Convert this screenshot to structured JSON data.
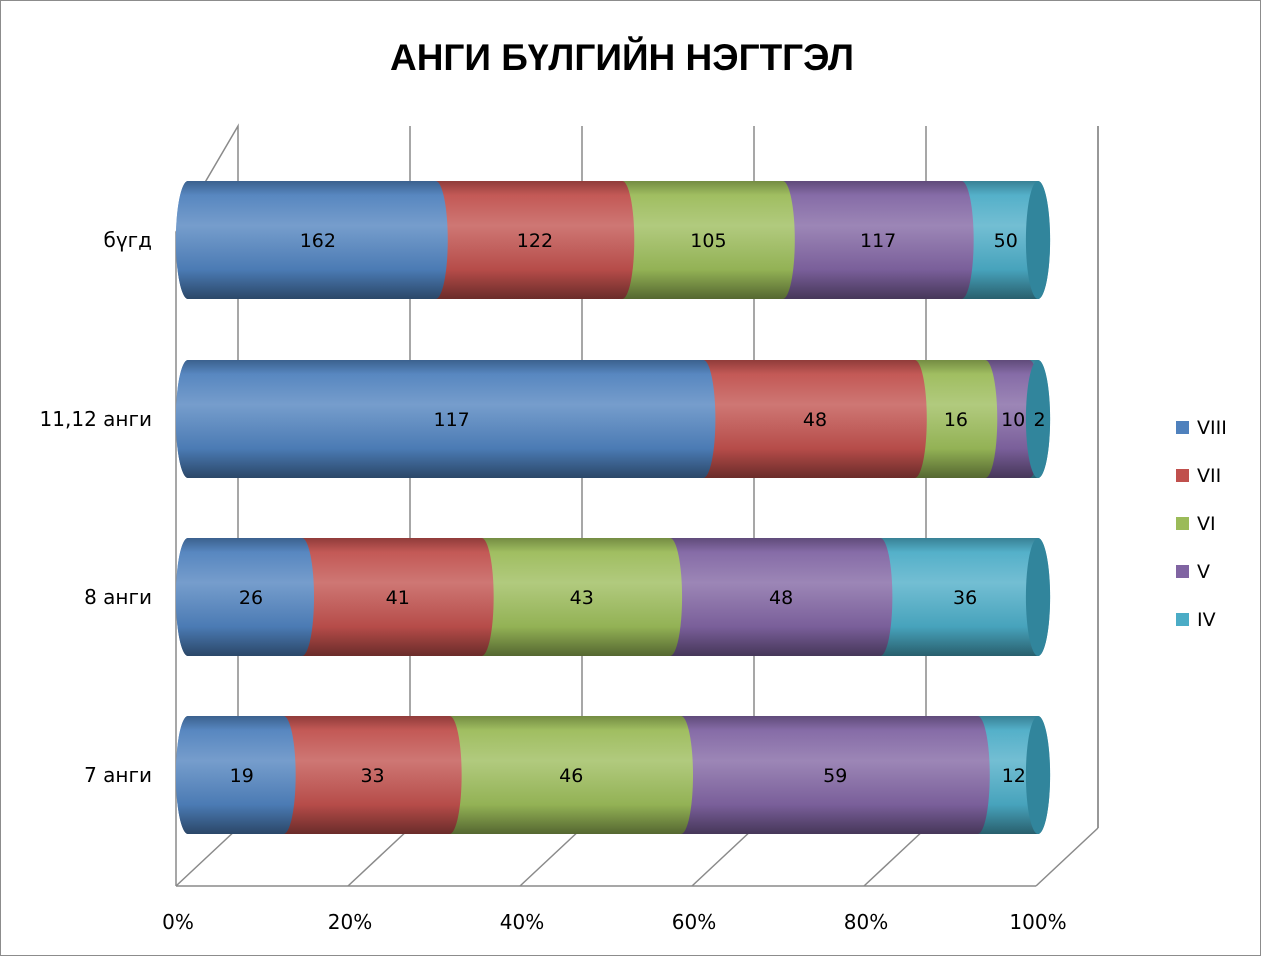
{
  "chart_data": {
    "type": "bar",
    "orientation": "horizontal",
    "stacked": "percent",
    "style": "3d-cylinder",
    "title": "АНГИ БҮЛГИЙН НЭГТГЭЛ",
    "categories": [
      "бүгд",
      "11,12 анги",
      "8 анги",
      "7 анги"
    ],
    "series": [
      {
        "name": "VIII",
        "color": "#4F81BD",
        "values": [
          162,
          117,
          26,
          19
        ]
      },
      {
        "name": "VII",
        "color": "#C0504D",
        "values": [
          122,
          48,
          41,
          33
        ]
      },
      {
        "name": "VI",
        "color": "#9BBB59",
        "values": [
          105,
          16,
          43,
          46
        ]
      },
      {
        "name": "V",
        "color": "#8064A2",
        "values": [
          117,
          10,
          48,
          59
        ]
      },
      {
        "name": "IV",
        "color": "#4BACC6",
        "values": [
          50,
          2,
          36,
          12
        ]
      }
    ],
    "xticks": [
      "0%",
      "20%",
      "40%",
      "60%",
      "80%",
      "100%"
    ],
    "xlim": [
      0,
      100
    ],
    "grid": true,
    "legend": "right"
  }
}
